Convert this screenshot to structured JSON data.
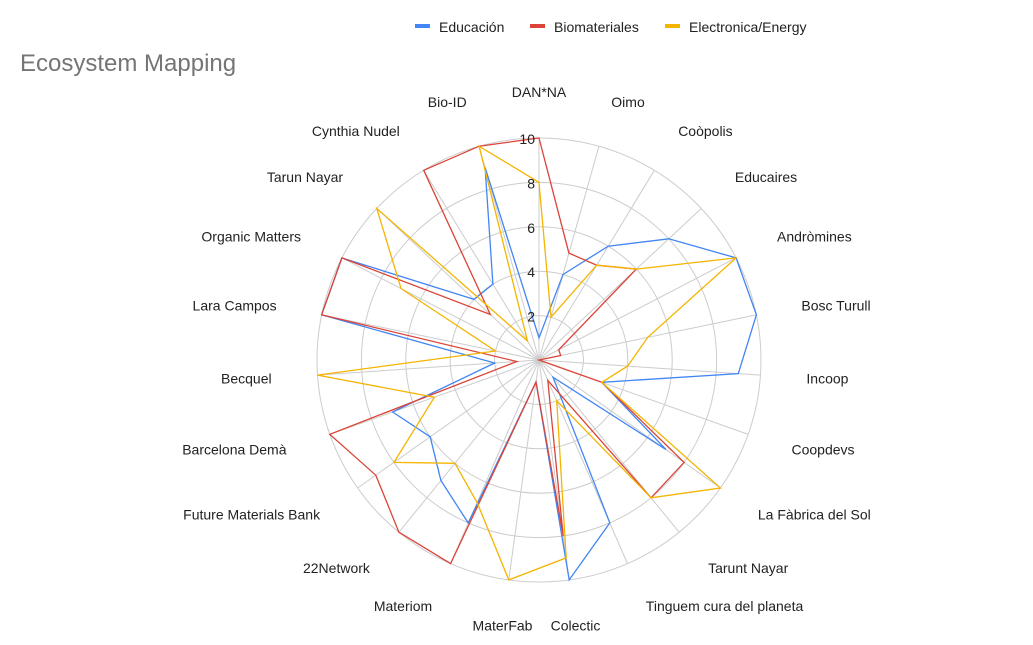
{
  "chart_data": {
    "type": "radar",
    "title": "Ecosystem Mapping",
    "categories": [
      "DAN*NA",
      "Oimo",
      "Coòpolis",
      "Educaires",
      "Andròmines",
      "Bosc Turull",
      "Incoop",
      "Coopdevs",
      "La Fàbrica del Sol",
      "Tarunt Nayar",
      "Tinguem cura del planeta",
      "Colectic",
      "MaterFab",
      "Materiom",
      "22Network",
      "Future Materials Bank",
      "Barcelona Demà",
      "Becquel",
      "Lara Campos",
      "Organic Matters",
      "Tarun Nayar",
      "Cynthia Nudel",
      "Bio-ID"
    ],
    "radial_ticks": [
      "",
      "2",
      "4",
      "6",
      "8",
      "10"
    ],
    "rlim": [
      0,
      10
    ],
    "grid": true,
    "legend_position": "top",
    "series": [
      {
        "name": "Educación",
        "color": "#4285F4",
        "values": [
          1,
          4,
          6,
          8,
          10,
          10,
          9,
          3,
          7,
          1,
          8,
          10,
          1,
          8,
          7,
          6,
          7,
          2,
          10,
          10,
          4,
          4,
          9
        ]
      },
      {
        "name": "Biomateriales",
        "color": "#DB4437",
        "values": [
          10,
          5,
          5,
          6,
          1,
          1,
          0,
          3,
          8,
          8,
          1,
          8,
          1,
          10,
          10,
          9,
          10,
          1,
          10,
          10,
          3,
          10,
          10
        ]
      },
      {
        "name": "Electronica/Energy",
        "color": "#F4B400",
        "values": [
          8,
          2,
          5,
          6,
          10,
          5,
          4,
          3,
          10,
          8,
          2,
          9,
          10,
          7,
          6,
          8,
          5,
          10,
          2,
          7,
          10,
          1,
          10
        ]
      }
    ]
  }
}
